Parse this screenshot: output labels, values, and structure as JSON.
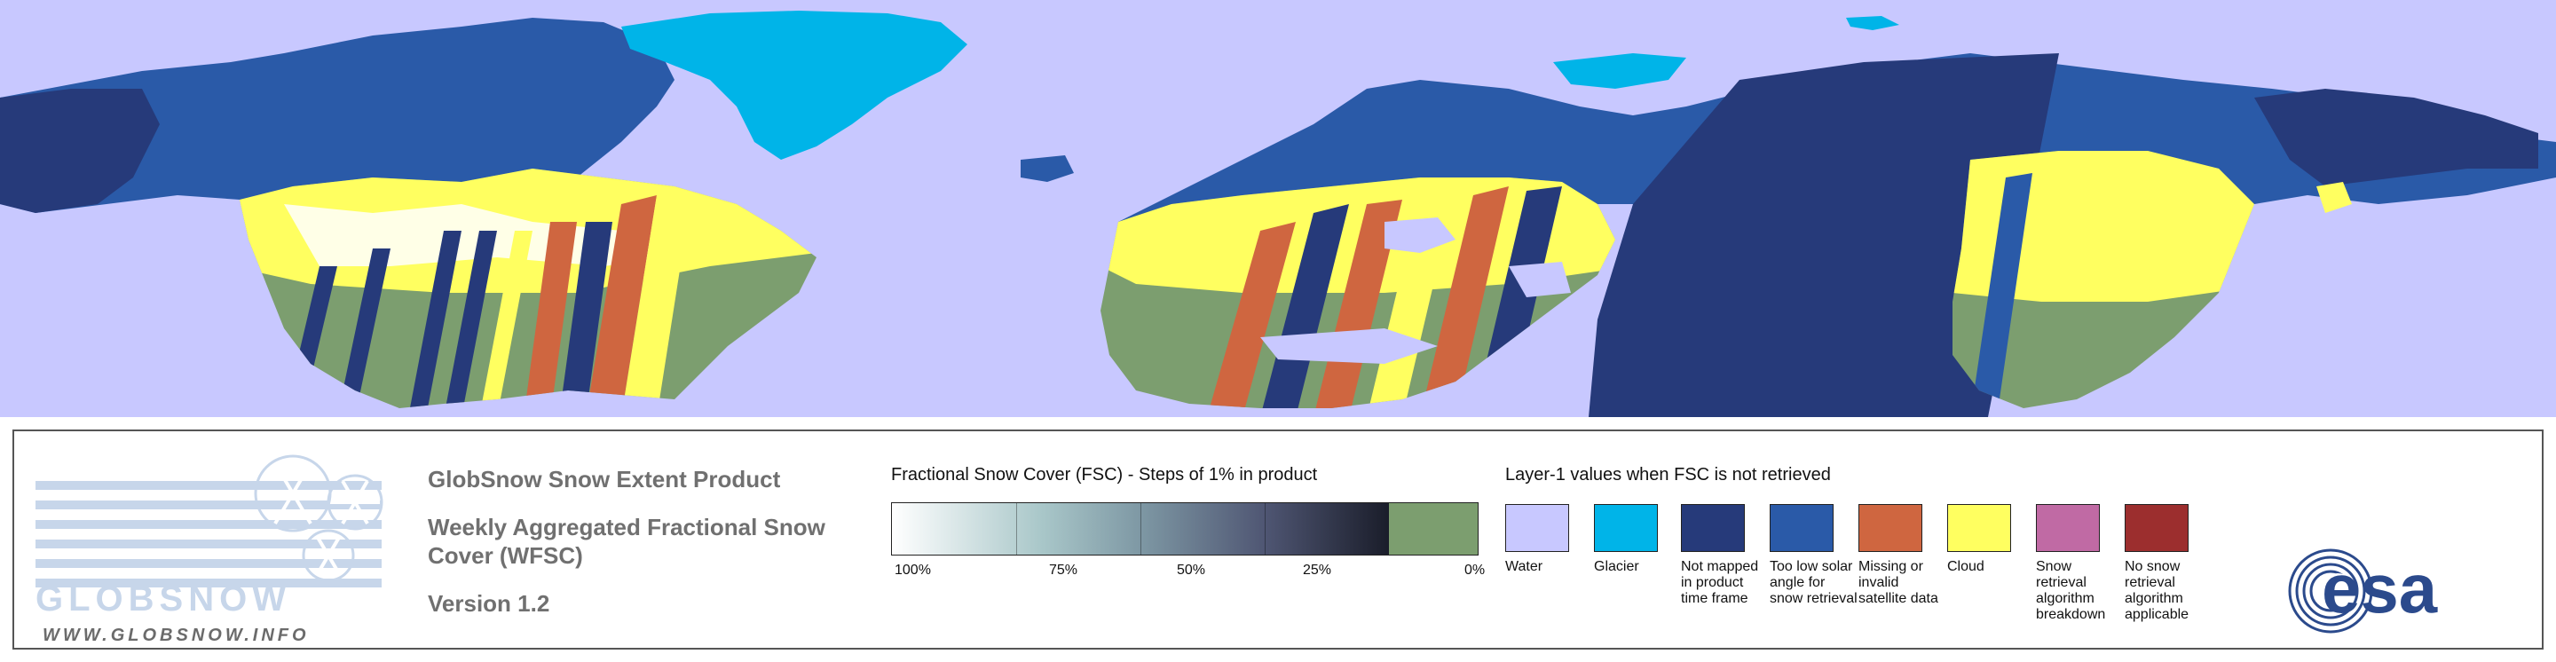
{
  "product": {
    "title_line1": "GlobSnow Snow Extent Product",
    "title_line2": "Weekly Aggregated Fractional Snow",
    "title_line2b": "Cover (WFSC)",
    "version": "Version 1.2"
  },
  "logo": {
    "brand": "GLOBSNOW",
    "url": "WWW.GLOBSNOW.INFO"
  },
  "fsc_legend": {
    "title": "Fractional Snow Cover (FSC) - Steps of 1% in product",
    "ticks": [
      "100%",
      "75%",
      "50%",
      "25%",
      "0%"
    ],
    "zero_color": "#7c9e6f"
  },
  "layer1": {
    "title": "Layer-1 values when FSC is not retrieved",
    "items": [
      {
        "label": "Water",
        "color": "#c8c8ff"
      },
      {
        "label": "Glacier",
        "color": "#00b4e8"
      },
      {
        "label": "Not mapped in product time frame",
        "color": "#263a7a"
      },
      {
        "label": "Too low solar angle for snow retrieval",
        "color": "#2a5aa8"
      },
      {
        "label": "Missing or invalid satellite data",
        "color": "#cf6640"
      },
      {
        "label": "Cloud",
        "color": "#ffff60"
      },
      {
        "label": "Snow retrieval algorithm breakdown",
        "color": "#c06aa4"
      },
      {
        "label": "No snow retrieval algorithm applicable",
        "color": "#9c2e2e"
      }
    ]
  },
  "esa": {
    "name": "esa"
  },
  "colors": {
    "water": "#c8c8ff",
    "glacier": "#00b4e8",
    "not_mapped": "#263a7a",
    "low_solar": "#2a5aa8",
    "missing": "#cf6640",
    "cloud": "#ffff60",
    "no_snow": "#7c9e6f"
  }
}
